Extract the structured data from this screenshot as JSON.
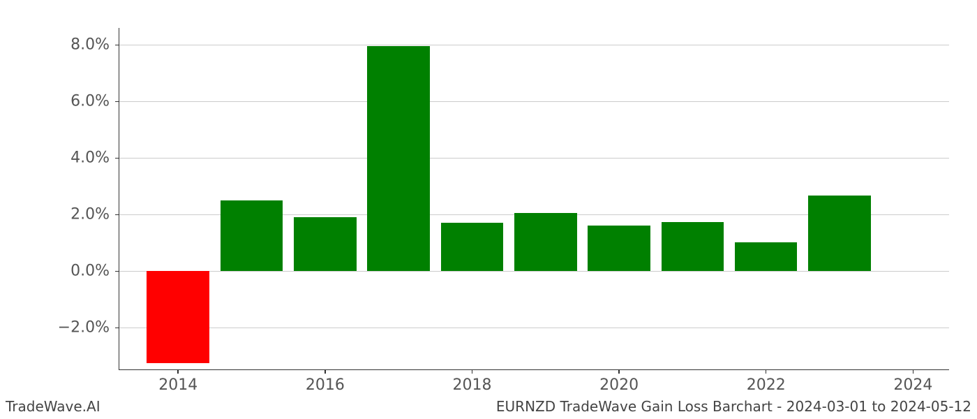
{
  "chart": {
    "type": "bar",
    "background_color": "#ffffff",
    "grid_color": "#cccccc",
    "axis_color": "#333333",
    "tick_label_color": "#555555",
    "tick_fontsize": 22,
    "positive_color": "#008000",
    "negative_color": "#ff0000",
    "ylim": [
      -3.5,
      8.6
    ],
    "yticks": [
      -2.0,
      0.0,
      2.0,
      4.0,
      6.0,
      8.0
    ],
    "ytick_labels": [
      "−2.0%",
      "0.0%",
      "2.0%",
      "4.0%",
      "6.0%",
      "8.0%"
    ],
    "xlim": [
      2013.2,
      2024.5
    ],
    "xticks": [
      2014,
      2016,
      2018,
      2020,
      2022,
      2024
    ],
    "xtick_labels": [
      "2014",
      "2016",
      "2018",
      "2020",
      "2022",
      "2024"
    ],
    "bar_width": 0.85,
    "bars": [
      {
        "x": 2014,
        "value": -3.25
      },
      {
        "x": 2015,
        "value": 2.5
      },
      {
        "x": 2016,
        "value": 1.9
      },
      {
        "x": 2017,
        "value": 7.95
      },
      {
        "x": 2018,
        "value": 1.72
      },
      {
        "x": 2019,
        "value": 2.05
      },
      {
        "x": 2020,
        "value": 1.6
      },
      {
        "x": 2021,
        "value": 1.74
      },
      {
        "x": 2022,
        "value": 1.02
      },
      {
        "x": 2023,
        "value": 2.68
      }
    ]
  },
  "footer": {
    "left": "TradeWave.AI",
    "right": "EURNZD TradeWave Gain Loss Barchart - 2024-03-01 to 2024-05-12"
  }
}
